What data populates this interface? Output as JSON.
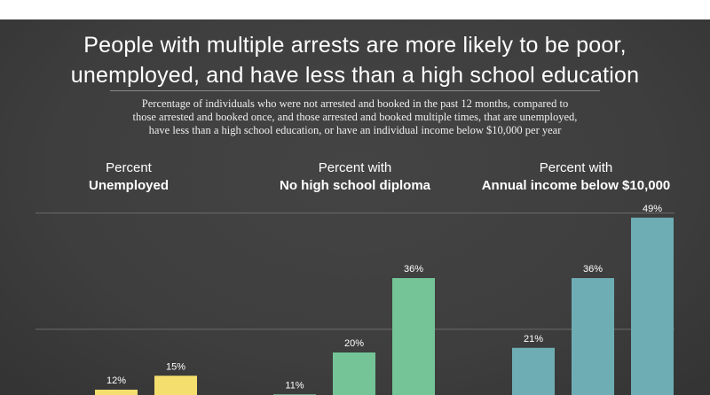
{
  "header": {
    "title_line1": "People with multiple arrests are more likely to be poor,",
    "title_line2": "unemployed, and have less than a high school education",
    "subtitle_line1": "Percentage of individuals who were not arrested and booked in the past 12 months, compared to",
    "subtitle_line2": "those arrested and booked once, and those arrested and booked multiple times, that are unemployed,",
    "subtitle_line3": "have less than a high school education, or have an individual income below $10,000 per year"
  },
  "chart_data": {
    "type": "bar",
    "ylim": [
      0,
      50
    ],
    "gridlines": [
      25,
      50
    ],
    "grid": true,
    "groups": [
      {
        "label_top": "Percent",
        "label_bold": "Unemployed",
        "color": "#f4de6e",
        "values": [
          null,
          12,
          15
        ],
        "labels": [
          "",
          "12%",
          "15%"
        ]
      },
      {
        "label_top": "Percent with",
        "label_bold": "No high school diploma",
        "color": "#74c497",
        "values": [
          11,
          20,
          36
        ],
        "labels": [
          "11%",
          "20%",
          "36%"
        ]
      },
      {
        "label_top": "Percent with",
        "label_bold": "Annual income below $10,000",
        "color": "#6eadb4",
        "values": [
          21,
          36,
          49
        ],
        "labels": [
          "21%",
          "36%",
          "49%"
        ]
      }
    ]
  }
}
